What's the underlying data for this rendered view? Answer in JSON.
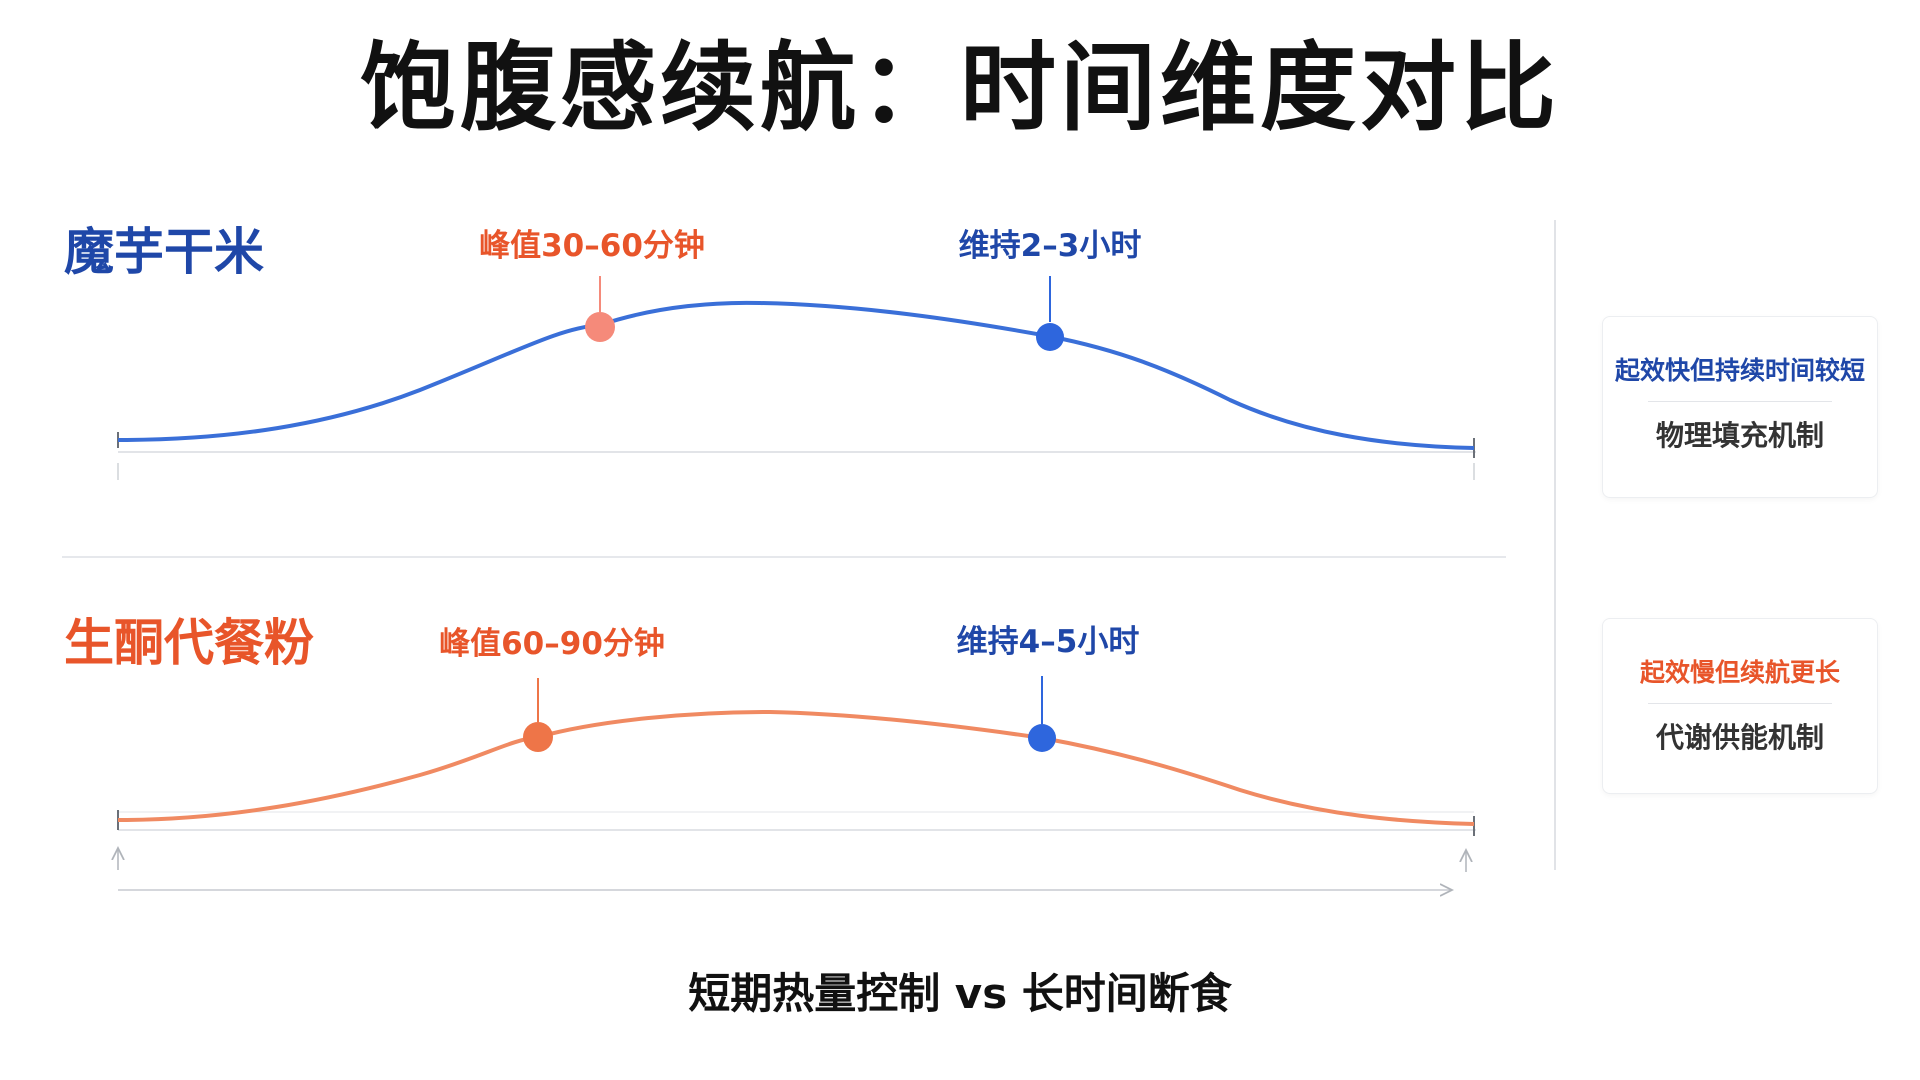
{
  "title": "饱腹感续航：时间维度对比",
  "colors": {
    "blue": "#3a6fd8",
    "dark_blue": "#1f47a8",
    "orange": "#f08a62",
    "red_orange": "#e8552a",
    "coral": "#f58a7a",
    "marker_blue": "#2e66dd",
    "marker_orange": "#ee7548"
  },
  "rows": [
    {
      "label": "魔芋干米",
      "peak_label": "峰值30–60分钟",
      "sustain_label": "维持2–3小时",
      "card": {
        "headline": "起效快但持续时间较短",
        "mechanism": "物理填充机制"
      }
    },
    {
      "label": "生酮代餐粉",
      "peak_label": "峰值60–90分钟",
      "sustain_label": "维持4–5小时",
      "card": {
        "headline": "起效慢但续航更长",
        "mechanism": "代谢供能机制"
      }
    }
  ],
  "footer": "短期热量控制 vs 长时间断食"
}
